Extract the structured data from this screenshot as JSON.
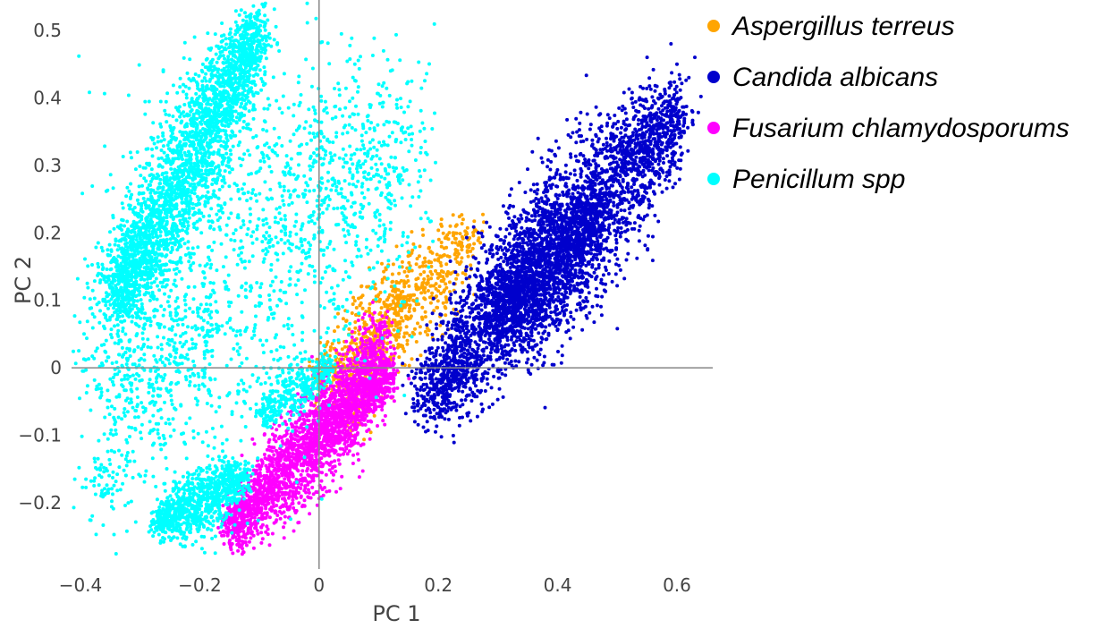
{
  "chart_data": {
    "type": "scatter",
    "title": "",
    "xlabel": "PC 1",
    "ylabel": "PC 2",
    "xlim": [
      -0.415,
      0.66
    ],
    "ylim": [
      -0.298,
      0.545
    ],
    "x_ticks": [
      -0.4,
      -0.2,
      0,
      0.2,
      0.4,
      0.6
    ],
    "x_tick_labels": [
      "−0.4",
      "−0.2",
      "0",
      "0.2",
      "0.4",
      "0.6"
    ],
    "y_ticks": [
      -0.2,
      -0.1,
      0,
      0.1,
      0.2,
      0.3,
      0.4,
      0.5
    ],
    "y_tick_labels": [
      "−0.2",
      "−0.1",
      "0",
      "0.1",
      "0.2",
      "0.3",
      "0.4",
      "0.5"
    ],
    "grid": false,
    "zero_lines": true,
    "legend_position": "top-right",
    "series": [
      {
        "name": "Aspergillus terreus",
        "color": "#FFA500",
        "clusters": [
          {
            "count": 700,
            "x_range": [
              0.0,
              0.26
            ],
            "y_at": [
              -0.03,
              0.2
            ],
            "spread": 0.04
          },
          {
            "count": 250,
            "x_range": [
              0.05,
              0.14
            ],
            "y_at": [
              -0.08,
              0.1
            ],
            "spread": 0.03
          }
        ],
        "points": [
          [
            0.22,
            0.21
          ],
          [
            0.25,
            0.19
          ],
          [
            0.19,
            0.17
          ],
          [
            0.08,
            0.12
          ],
          [
            0.13,
            0.18
          ]
        ]
      },
      {
        "name": "Candida albicans",
        "color": "#0000CC",
        "clusters": [
          {
            "count": 3200,
            "x_range": [
              0.18,
              0.6
            ],
            "y_at": [
              -0.04,
              0.38
            ],
            "spread": 0.06
          },
          {
            "count": 1500,
            "x_range": [
              0.3,
              0.46
            ],
            "y_at": [
              0.08,
              0.22
            ],
            "spread": 0.05
          }
        ],
        "points": [
          [
            0.59,
            0.48
          ],
          [
            0.6,
            0.45
          ],
          [
            0.58,
            0.41
          ],
          [
            0.55,
            0.46
          ],
          [
            0.63,
            0.46
          ],
          [
            0.62,
            0.43
          ]
        ]
      },
      {
        "name": "Fusarium chlamydosporums",
        "color": "#FF00FF",
        "clusters": [
          {
            "count": 2200,
            "x_range": [
              -0.15,
              0.12
            ],
            "y_at": [
              -0.24,
              0.0
            ],
            "spread": 0.035
          },
          {
            "count": 500,
            "x_range": [
              -0.02,
              0.11
            ],
            "y_at": [
              -0.12,
              0.06
            ],
            "spread": 0.03
          }
        ],
        "points": [
          [
            -0.03,
            0.0
          ],
          [
            0.09,
            0.07
          ],
          [
            -0.14,
            -0.24
          ]
        ]
      },
      {
        "name": "Penicillum spp",
        "color": "#00FFFF",
        "clusters": [
          {
            "count": 2600,
            "x_range": [
              -0.34,
              -0.1
            ],
            "y_at": [
              0.1,
              0.5
            ],
            "spread": 0.045
          },
          {
            "count": 1800,
            "x_range": [
              -0.36,
              0.12
            ],
            "y_at": [
              0.02,
              0.32
            ],
            "spread": 0.14
          },
          {
            "count": 900,
            "x_range": [
              -0.27,
              -0.12
            ],
            "y_at": [
              -0.23,
              -0.16
            ],
            "spread": 0.025
          },
          {
            "count": 350,
            "x_range": [
              -0.1,
              0.02
            ],
            "y_at": [
              -0.07,
              0.0
            ],
            "spread": 0.02
          },
          {
            "count": 250,
            "x_range": [
              -0.38,
              -0.2
            ],
            "y_at": [
              -0.2,
              0.05
            ],
            "spread": 0.06
          }
        ],
        "points": [
          [
            -0.09,
            0.54
          ],
          [
            -0.02,
            0.54
          ],
          [
            0.1,
            0.42
          ],
          [
            0.12,
            0.44
          ],
          [
            0.06,
            0.45
          ],
          [
            0.13,
            0.39
          ],
          [
            -0.32,
            -0.2
          ]
        ]
      }
    ]
  }
}
